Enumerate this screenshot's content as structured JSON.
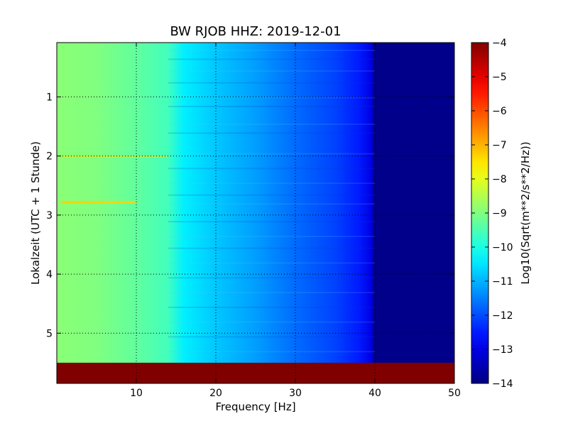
{
  "chart_data": {
    "type": "heatmap",
    "title": "BW RJOB HHZ: 2019-12-01",
    "xlabel": "Frequency [Hz]",
    "ylabel": "Lokalzeit (UTC + 1 Stunde)",
    "xlim": [
      0,
      50
    ],
    "ylim": [
      5.85,
      0.08
    ],
    "xticks": [
      10,
      20,
      30,
      40,
      50
    ],
    "yticks": [
      1,
      2,
      3,
      4,
      5
    ],
    "grid": true,
    "colorbar": {
      "label": "Log10(Sqrt(m**2/s**2/Hz))",
      "range": [
        -14,
        -4
      ],
      "ticks": [
        -4,
        -5,
        -6,
        -7,
        -8,
        -9,
        -10,
        -11,
        -12,
        -13,
        -14
      ],
      "colormap": "jet"
    },
    "z_profile": {
      "frequency_hz": [
        0,
        5,
        10,
        14,
        16,
        20,
        25,
        30,
        35,
        38,
        39.5,
        40,
        50
      ],
      "log10_amplitude": [
        -8.9,
        -9.0,
        -9.3,
        -9.6,
        -10.4,
        -10.8,
        -11.2,
        -11.7,
        -12.1,
        -12.5,
        -13.0,
        -13.9,
        -13.9
      ]
    },
    "data_gap": {
      "time_from": 5.5,
      "time_to": 5.85,
      "value": -4
    }
  }
}
